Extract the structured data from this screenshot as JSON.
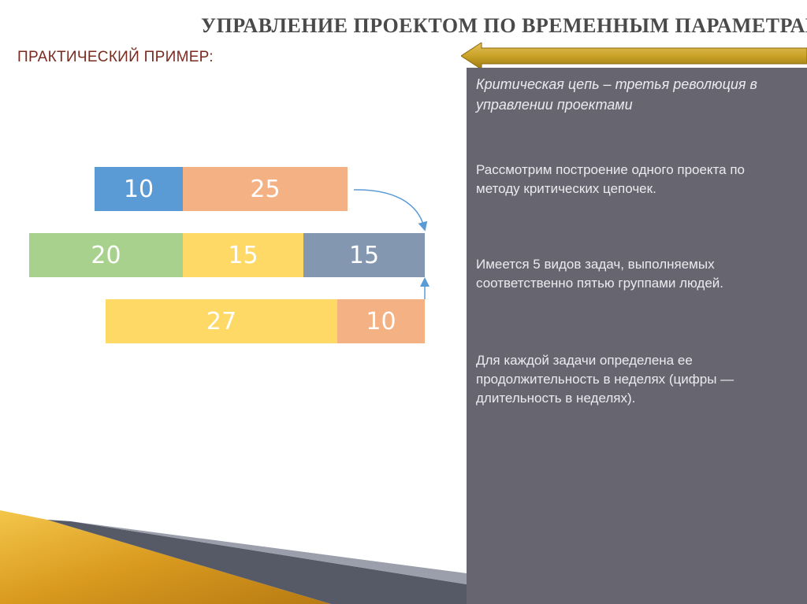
{
  "slide": {
    "title": "УПРАВЛЕНИЕ ПРОЕКТОМ ПО ВРЕМЕННЫМ ПАРАМЕТРАМ",
    "subtitle": "ПРАКТИЧЕСКИЙ ПРИМЕР:"
  },
  "panel": {
    "heading": "Критическая цепь – третья революция в управлении проектами",
    "paragraphs": [
      "Рассмотрим построение одного проекта по методу критических цепочек.",
      "Имеется 5 видов задач, выполняемых соответственно пятью группами людей.",
      "Для каждой задачи определена ее продолжительность в неделях (цифры — длительность в неделях)."
    ]
  },
  "diagram": {
    "chains": [
      {
        "tasks": [
          {
            "value": "10",
            "color": "#5b9bd5"
          },
          {
            "value": "25",
            "color": "#f4b183"
          }
        ]
      },
      {
        "tasks": [
          {
            "value": "20",
            "color": "#a9d18e"
          },
          {
            "value": "15",
            "color": "#ffd966"
          },
          {
            "value": "15",
            "color": "#8497b0"
          }
        ]
      },
      {
        "tasks": [
          {
            "value": "27",
            "color": "#ffd966"
          },
          {
            "value": "10",
            "color": "#f4b183"
          }
        ]
      }
    ]
  },
  "colors": {
    "panel": "#676670",
    "accent_gold": "#c9a227",
    "title": "#4a4a4a",
    "subtitle": "#7a2b20"
  }
}
